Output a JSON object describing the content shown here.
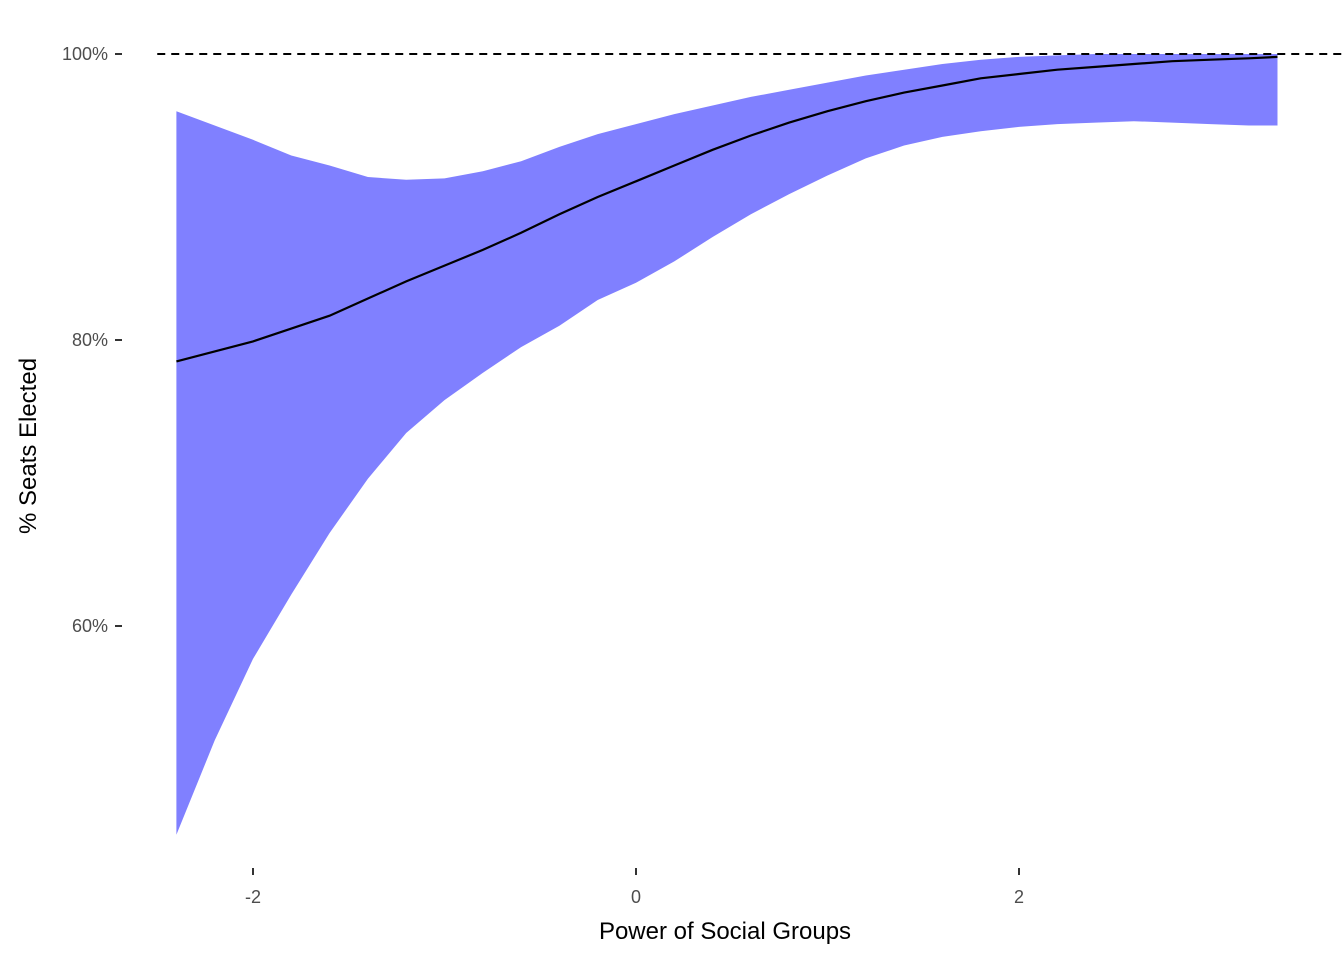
{
  "chart_data": {
    "type": "area",
    "xlabel": "Power of Social Groups",
    "ylabel": "% Seats Elected",
    "xlim": [
      -2.5,
      3.6
    ],
    "ylim": [
      0.45,
      1.01
    ],
    "x_ticks": [
      {
        "value": -2,
        "label": "-2"
      },
      {
        "value": 0,
        "label": "0"
      },
      {
        "value": 2,
        "label": "2"
      }
    ],
    "y_ticks": [
      {
        "value": 0.6,
        "label": "60%"
      },
      {
        "value": 0.8,
        "label": "80%"
      },
      {
        "value": 1.0,
        "label": "100%"
      }
    ],
    "reference_line": {
      "y": 1.0,
      "style": "dashed",
      "color": "#000000"
    },
    "grid": false,
    "colors": {
      "band": "#8080ff",
      "line": "#000000"
    },
    "x": [
      -2.4,
      -2.2,
      -2.0,
      -1.8,
      -1.6,
      -1.4,
      -1.2,
      -1.0,
      -0.8,
      -0.6,
      -0.4,
      -0.2,
      0.0,
      0.2,
      0.4,
      0.6,
      0.8,
      1.0,
      1.2,
      1.4,
      1.6,
      1.8,
      2.0,
      2.2,
      2.4,
      2.6,
      2.8,
      3.0,
      3.2,
      3.35
    ],
    "lower": [
      0.454,
      0.52,
      0.577,
      0.622,
      0.665,
      0.703,
      0.735,
      0.758,
      0.777,
      0.795,
      0.81,
      0.828,
      0.84,
      0.855,
      0.872,
      0.888,
      0.902,
      0.915,
      0.927,
      0.936,
      0.942,
      0.946,
      0.949,
      0.951,
      0.952,
      0.953,
      0.952,
      0.951,
      0.95,
      0.95
    ],
    "mean": [
      0.785,
      0.792,
      0.799,
      0.808,
      0.817,
      0.829,
      0.841,
      0.852,
      0.863,
      0.875,
      0.888,
      0.9,
      0.911,
      0.922,
      0.933,
      0.943,
      0.952,
      0.96,
      0.967,
      0.973,
      0.978,
      0.983,
      0.986,
      0.989,
      0.991,
      0.993,
      0.995,
      0.996,
      0.997,
      0.998
    ],
    "upper": [
      0.96,
      0.95,
      0.94,
      0.929,
      0.922,
      0.914,
      0.912,
      0.913,
      0.918,
      0.925,
      0.935,
      0.944,
      0.951,
      0.958,
      0.964,
      0.97,
      0.975,
      0.98,
      0.985,
      0.989,
      0.993,
      0.996,
      0.998,
      0.999,
      1.0,
      1.0,
      1.0,
      1.0,
      1.0,
      1.0
    ]
  }
}
